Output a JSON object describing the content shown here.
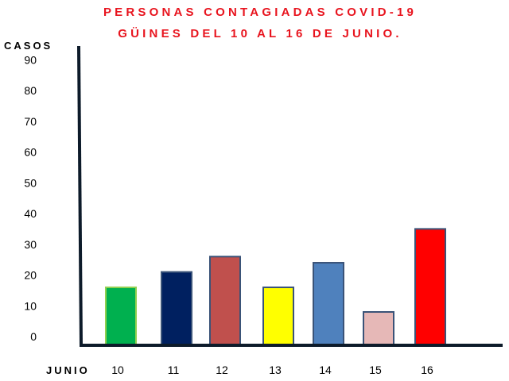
{
  "chart_data": {
    "type": "bar",
    "title_lines": [
      "PERSONAS CONTAGIADAS COVID-19",
      "GÜINES DEL 10 AL 16 DE JUNIO."
    ],
    "ylabel": "CASOS",
    "xlabel": "JUNIO",
    "categories": [
      "10",
      "11",
      "12",
      "13",
      "14",
      "15",
      "16"
    ],
    "values": [
      16,
      21,
      26,
      16,
      24,
      8,
      35
    ],
    "colors": [
      "#00b04f",
      "#002060",
      "#c0504d",
      "#ffff00",
      "#4f81bd",
      "#e6b8b7",
      "#ff0000"
    ],
    "yticks": [
      0,
      10,
      20,
      30,
      40,
      50,
      60,
      70,
      80,
      90
    ],
    "ylim": [
      0,
      90
    ],
    "grid": false,
    "legend": "none"
  }
}
